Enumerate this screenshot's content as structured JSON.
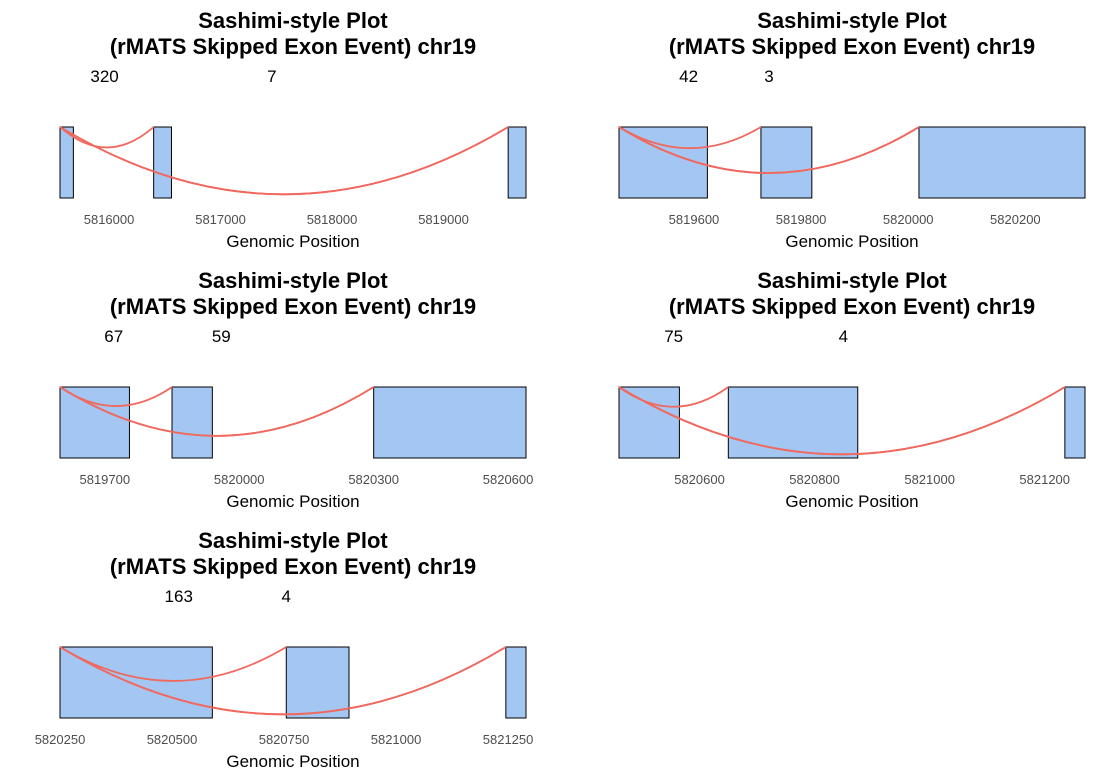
{
  "chart_data": [
    {
      "type": "sashimi",
      "title_line1": "Sashimi-style Plot",
      "title_line2": "(rMATS Skipped Exon Event) chr19",
      "xlabel": "Genomic Position",
      "xlim": [
        5815560,
        5819740
      ],
      "ticks": [
        5816000,
        5817000,
        5818000,
        5819000
      ],
      "tick_labels": [
        "5816000",
        "5817000",
        "5818000",
        "5819000"
      ],
      "exons": [
        [
          5815560,
          5815680
        ],
        [
          5816400,
          5816560
        ],
        [
          5819580,
          5819740
        ]
      ],
      "junctions": [
        {
          "start": 5815560,
          "end": 5816400,
          "depth": 0.26
        },
        {
          "start": 5815560,
          "end": 5819580,
          "depth": 0.92
        },
        {
          "start": 5815560,
          "end": 5819580,
          "depth": 0.92
        }
      ],
      "counts": [
        {
          "label": "320",
          "pos": 5815960
        },
        {
          "label": "7",
          "pos": 5817460
        }
      ],
      "exon_color": "#a3c7f2",
      "arc_color": "#f0685e"
    },
    {
      "type": "sashimi",
      "title_line1": "Sashimi-style Plot",
      "title_line2": "(rMATS Skipped Exon Event) chr19",
      "xlabel": "Genomic Position",
      "xlim": [
        5819460,
        5820330
      ],
      "ticks": [
        5819600,
        5819800,
        5820000,
        5820200
      ],
      "tick_labels": [
        "5819600",
        "5819800",
        "5820000",
        "5820200"
      ],
      "exons": [
        [
          5819460,
          5819625
        ],
        [
          5819725,
          5819820
        ],
        [
          5820020,
          5820330
        ]
      ],
      "junctions": [
        {
          "start": 5819460,
          "end": 5819725,
          "depth": 0.27
        },
        {
          "start": 5819460,
          "end": 5820020,
          "depth": 0.62
        },
        {
          "start": 5819460,
          "end": 5820020,
          "depth": 0.62
        }
      ],
      "counts": [
        {
          "label": "42",
          "pos": 5819590
        },
        {
          "label": "3",
          "pos": 5819740
        }
      ],
      "exon_color": "#a3c7f2",
      "arc_color": "#f0685e"
    },
    {
      "type": "sashimi",
      "title_line1": "Sashimi-style Plot",
      "title_line2": "(rMATS Skipped Exon Event) chr19",
      "xlabel": "Genomic Position",
      "xlim": [
        5819600,
        5820640
      ],
      "ticks": [
        5819700,
        5820000,
        5820300,
        5820600
      ],
      "tick_labels": [
        "5819700",
        "5820000",
        "5820300",
        "5820600"
      ],
      "exons": [
        [
          5819600,
          5819755
        ],
        [
          5819850,
          5819940
        ],
        [
          5820300,
          5820640
        ]
      ],
      "junctions": [
        {
          "start": 5819600,
          "end": 5819850,
          "depth": 0.24
        },
        {
          "start": 5819600,
          "end": 5820300,
          "depth": 0.66
        },
        {
          "start": 5819600,
          "end": 5820300,
          "depth": 0.66
        }
      ],
      "counts": [
        {
          "label": "67",
          "pos": 5819720
        },
        {
          "label": "59",
          "pos": 5819960
        }
      ],
      "exon_color": "#a3c7f2",
      "arc_color": "#f0685e"
    },
    {
      "type": "sashimi",
      "title_line1": "Sashimi-style Plot",
      "title_line2": "(rMATS Skipped Exon Event) chr19",
      "xlabel": "Genomic Position",
      "xlim": [
        5820460,
        5821270
      ],
      "ticks": [
        5820600,
        5820800,
        5821000,
        5821200
      ],
      "tick_labels": [
        "5820600",
        "5820800",
        "5821000",
        "5821200"
      ],
      "exons": [
        [
          5820460,
          5820565
        ],
        [
          5820650,
          5820875
        ],
        [
          5821235,
          5821270
        ]
      ],
      "junctions": [
        {
          "start": 5820460,
          "end": 5820650,
          "depth": 0.25
        },
        {
          "start": 5820460,
          "end": 5821235,
          "depth": 0.92
        },
        {
          "start": 5820460,
          "end": 5821235,
          "depth": 0.92
        }
      ],
      "counts": [
        {
          "label": "75",
          "pos": 5820555
        },
        {
          "label": "4",
          "pos": 5820850
        }
      ],
      "exon_color": "#a3c7f2",
      "arc_color": "#f0685e"
    },
    {
      "type": "sashimi",
      "title_line1": "Sashimi-style Plot",
      "title_line2": "(rMATS Skipped Exon Event) chr19",
      "xlabel": "Genomic Position",
      "xlim": [
        5820250,
        5821290
      ],
      "ticks": [
        5820250,
        5820500,
        5820750,
        5821000,
        5821250
      ],
      "tick_labels": [
        "5820250",
        "5820500",
        "5820750",
        "5821000",
        "5821250"
      ],
      "exons": [
        [
          5820250,
          5820590
        ],
        [
          5820755,
          5820895
        ],
        [
          5821245,
          5821290
        ]
      ],
      "junctions": [
        {
          "start": 5820250,
          "end": 5820755,
          "depth": 0.45
        },
        {
          "start": 5820250,
          "end": 5821245,
          "depth": 0.92
        },
        {
          "start": 5820250,
          "end": 5821245,
          "depth": 0.92
        }
      ],
      "counts": [
        {
          "label": "163",
          "pos": 5820515
        },
        {
          "label": "4",
          "pos": 5820755
        }
      ],
      "exon_color": "#a3c7f2",
      "arc_color": "#f0685e"
    }
  ]
}
